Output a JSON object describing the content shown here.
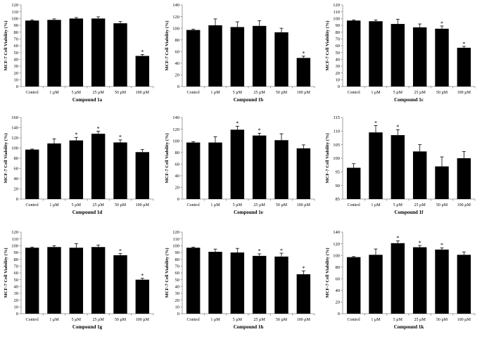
{
  "figure": {
    "ylabel": "MCF-7  Cell Viability (%)",
    "categories": [
      "Control",
      "1 µM",
      "5 µM",
      "25 µM",
      "50 µM",
      "100 µM"
    ],
    "bar_color": "#000000",
    "axis_color": "#888888"
  },
  "chart_data": [
    {
      "type": "bar",
      "xlabel": "Compound 1a",
      "ylabel": "MCF-7  Cell Viability (%)",
      "categories": [
        "Control",
        "1 µM",
        "5 µM",
        "25 µM",
        "50 µM",
        "100 µM"
      ],
      "values": [
        97,
        98,
        100,
        100,
        93,
        45
      ],
      "errors": [
        1,
        1.5,
        1.5,
        2.5,
        2.5,
        2
      ],
      "significant": [
        false,
        false,
        false,
        false,
        false,
        true
      ],
      "ylim": [
        0,
        120
      ],
      "ticks": [
        0,
        10,
        20,
        30,
        40,
        50,
        60,
        70,
        80,
        90,
        100,
        110,
        120
      ],
      "grid": false
    },
    {
      "type": "bar",
      "xlabel": "Compound 1b",
      "ylabel": "MCF-7  Cell Viability (%)",
      "categories": [
        "Control",
        "1 µM",
        "5 µM",
        "25 µM",
        "50 µM",
        "100 µM"
      ],
      "values": [
        97,
        105,
        102,
        104,
        93,
        49
      ],
      "errors": [
        1.5,
        11,
        9,
        9,
        7,
        3
      ],
      "significant": [
        false,
        false,
        false,
        false,
        false,
        true
      ],
      "ylim": [
        0,
        140
      ],
      "ticks": [
        0,
        20,
        40,
        60,
        80,
        100,
        120,
        140
      ],
      "grid": false
    },
    {
      "type": "bar",
      "xlabel": "Compound 1c",
      "ylabel": "MCF-7  Cell Viability (%)",
      "categories": [
        "Control",
        "1 µM",
        "5 µM",
        "25 µM",
        "50 µM",
        "100 µM"
      ],
      "values": [
        97,
        96,
        92,
        87,
        85,
        57
      ],
      "errors": [
        1,
        2,
        7,
        5,
        4,
        2
      ],
      "significant": [
        false,
        false,
        false,
        false,
        true,
        true
      ],
      "ylim": [
        0,
        120
      ],
      "ticks": [
        0,
        10,
        20,
        30,
        40,
        50,
        60,
        70,
        80,
        90,
        100,
        110,
        120
      ],
      "grid": false
    },
    {
      "type": "bar",
      "xlabel": "Compound 1d",
      "ylabel": "MCF-7  Cell Viability (%)",
      "categories": [
        "Control",
        "1 µM",
        "5 µM",
        "25 µM",
        "50 µM",
        "100 µM"
      ],
      "values": [
        97,
        109,
        115,
        128,
        111,
        92
      ],
      "errors": [
        1,
        9,
        6,
        5,
        5,
        5
      ],
      "significant": [
        false,
        false,
        true,
        true,
        true,
        false
      ],
      "ylim": [
        0,
        160
      ],
      "ticks": [
        0,
        20,
        40,
        60,
        80,
        100,
        120,
        140,
        160
      ],
      "grid": false
    },
    {
      "type": "bar",
      "xlabel": "Compound 1e",
      "ylabel": "MCF-7  Cell Viability (%)",
      "categories": [
        "Control",
        "1 µM",
        "5 µM",
        "25 µM",
        "50 µM",
        "100 µM"
      ],
      "values": [
        97,
        97,
        119,
        109,
        101,
        87
      ],
      "errors": [
        1.5,
        10,
        6,
        4,
        11,
        6
      ],
      "significant": [
        false,
        false,
        true,
        true,
        false,
        false
      ],
      "ylim": [
        0,
        140
      ],
      "ticks": [
        0,
        20,
        40,
        60,
        80,
        100,
        120,
        140
      ],
      "grid": false
    },
    {
      "type": "bar",
      "xlabel": "Compound 1f",
      "ylabel": "MCF-7  Cell Viability (%)",
      "categories": [
        "Control",
        "1 µM",
        "5 µM",
        "25 µM",
        "50 µM",
        "100 µM"
      ],
      "values": [
        96.5,
        109.5,
        108.5,
        102.5,
        97,
        100
      ],
      "errors": [
        1.5,
        2.5,
        2,
        2.5,
        3.5,
        2.5
      ],
      "significant": [
        false,
        true,
        true,
        false,
        false,
        false
      ],
      "ylim": [
        85,
        115
      ],
      "ticks": [
        85,
        90,
        95,
        100,
        105,
        110,
        115
      ],
      "grid": false
    },
    {
      "type": "bar",
      "xlabel": "Compound 1g",
      "ylabel": "MCF-7  Cell Viability (%)",
      "categories": [
        "Control",
        "1 µM",
        "5 µM",
        "25 µM",
        "50 µM",
        "100 µM"
      ],
      "values": [
        97,
        98,
        97,
        98,
        86,
        50
      ],
      "errors": [
        1,
        2,
        6,
        3,
        2.5,
        2
      ],
      "significant": [
        false,
        false,
        false,
        false,
        true,
        true
      ],
      "ylim": [
        0,
        120
      ],
      "ticks": [
        0,
        10,
        20,
        30,
        40,
        50,
        60,
        70,
        80,
        90,
        100,
        110,
        120
      ],
      "grid": false
    },
    {
      "type": "bar",
      "xlabel": "Compound 1h",
      "ylabel": "MCF-7  Cell Viability (%)",
      "categories": [
        "Control",
        "1 µM",
        "5 µM",
        "25 µM",
        "50 µM",
        "100 µM"
      ],
      "values": [
        97,
        91,
        90,
        85,
        84,
        58
      ],
      "errors": [
        1,
        4,
        6,
        3,
        5,
        5
      ],
      "significant": [
        false,
        false,
        false,
        true,
        true,
        true
      ],
      "ylim": [
        0,
        120
      ],
      "ticks": [
        0,
        10,
        20,
        30,
        40,
        50,
        60,
        70,
        80,
        90,
        100,
        110,
        120
      ],
      "grid": false
    },
    {
      "type": "bar",
      "xlabel": "Compound 1k",
      "ylabel": "MCF-7  Cell Viability (%)",
      "categories": [
        "Control",
        "1 µM",
        "5 µM",
        "25 µM",
        "50 µM",
        "100 µM"
      ],
      "values": [
        97,
        101,
        121,
        114,
        110,
        101
      ],
      "errors": [
        1,
        10,
        4,
        3,
        3,
        5
      ],
      "significant": [
        false,
        false,
        true,
        true,
        true,
        false
      ],
      "ylim": [
        0,
        140
      ],
      "ticks": [
        0,
        20,
        40,
        60,
        80,
        100,
        120,
        140
      ],
      "grid": false
    }
  ]
}
